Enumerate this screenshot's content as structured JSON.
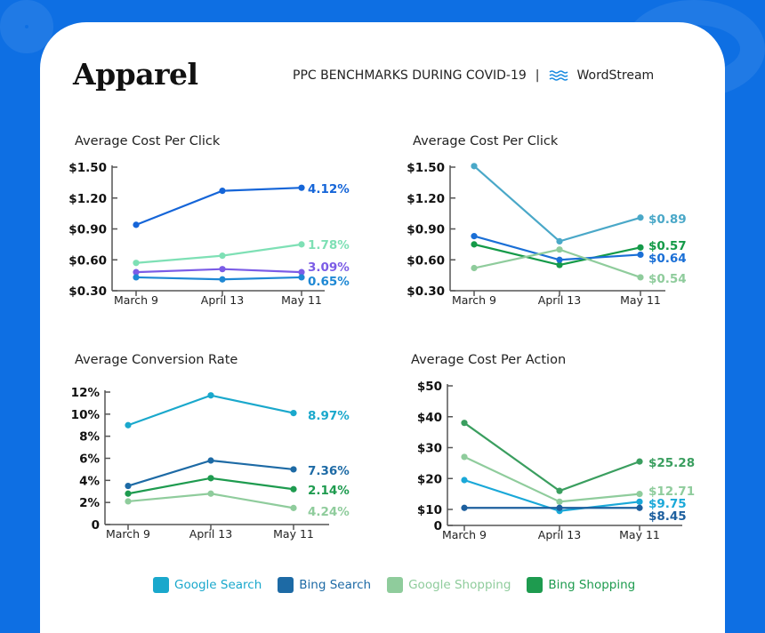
{
  "header": {
    "title": "Apparel",
    "subtitle": "PPC BENCHMARKS DURING COVID-19",
    "separator": "|",
    "brand": "WordStream",
    "brand_icon": "wave-icon"
  },
  "legend": [
    {
      "label": "Google Search",
      "color": "#1aa8cc"
    },
    {
      "label": "Bing Search",
      "color": "#1d6aa5"
    },
    {
      "label": "Google Shopping",
      "color": "#8fcc9c"
    },
    {
      "label": "Bing Shopping",
      "color": "#1e9b4f"
    }
  ],
  "chart_data": [
    {
      "type": "line",
      "title": "Average Cost Per Click",
      "categories": [
        "March 9",
        "April 13",
        "May 11"
      ],
      "yticks": [
        "$0.30",
        "$0.60",
        "$0.90",
        "$1.20",
        "$1.50"
      ],
      "ytick_values": [
        0.3,
        0.6,
        0.9,
        1.2,
        1.5
      ],
      "ylim": [
        0.3,
        1.5
      ],
      "series": [
        {
          "values": [
            0.94,
            1.27,
            1.3
          ],
          "color": "#1565d8",
          "end_label": "4.12%"
        },
        {
          "values": [
            0.57,
            0.64,
            0.75
          ],
          "color": "#7ee0b5",
          "end_label": "1.78%"
        },
        {
          "values": [
            0.48,
            0.51,
            0.48
          ],
          "color": "#7b5ce6",
          "end_label": "3.09%"
        },
        {
          "values": [
            0.43,
            0.41,
            0.43
          ],
          "color": "#1e88d4",
          "end_label": "0.65%"
        }
      ]
    },
    {
      "type": "line",
      "title": "Average Cost Per Click",
      "categories": [
        "March 9",
        "April 13",
        "May 11"
      ],
      "yticks": [
        "$0.30",
        "$0.60",
        "$0.90",
        "$1.20",
        "$1.50"
      ],
      "ytick_values": [
        0.3,
        0.6,
        0.9,
        1.2,
        1.5
      ],
      "ylim": [
        0.3,
        1.5
      ],
      "series": [
        {
          "values": [
            1.51,
            0.78,
            1.01
          ],
          "color": "#4aa8c8",
          "end_label": "$0.89"
        },
        {
          "values": [
            0.75,
            0.55,
            0.72
          ],
          "color": "#149a48",
          "end_label": "$0.57"
        },
        {
          "values": [
            0.83,
            0.6,
            0.65
          ],
          "color": "#1a6fd6",
          "end_label": "$0.64"
        },
        {
          "values": [
            0.52,
            0.7,
            0.43
          ],
          "color": "#8fcc9c",
          "end_label": "$0.54"
        }
      ]
    },
    {
      "type": "line",
      "title": "Average Conversion Rate",
      "categories": [
        "March 9",
        "April 13",
        "May 11"
      ],
      "yticks": [
        "0",
        "2%",
        "4%",
        "6%",
        "8%",
        "10%",
        "12%"
      ],
      "ytick_values": [
        0,
        2,
        4,
        6,
        8,
        10,
        12
      ],
      "ylim": [
        0,
        12
      ],
      "series": [
        {
          "name": "Google Search",
          "values": [
            9.0,
            11.7,
            10.1
          ],
          "color": "#1aa8cc",
          "end_label": "8.97%"
        },
        {
          "name": "Bing Search",
          "values": [
            3.5,
            5.8,
            5.0
          ],
          "color": "#1d6aa5",
          "end_label": "7.36%"
        },
        {
          "name": "Bing Shopping",
          "values": [
            2.8,
            4.2,
            3.2
          ],
          "color": "#1e9b4f",
          "end_label": "2.14%"
        },
        {
          "name": "Google Shopping",
          "values": [
            2.1,
            2.8,
            1.5
          ],
          "color": "#8fcc9c",
          "end_label": "4.24%"
        }
      ]
    },
    {
      "type": "line",
      "title": "Average Cost Per Action",
      "categories": [
        "March 9",
        "April 13",
        "May 11"
      ],
      "yticks": [
        "0",
        "$10",
        "$20",
        "$30",
        "$40",
        "$50"
      ],
      "ytick_values": [
        0,
        10,
        20,
        30,
        40,
        50
      ],
      "ylim": [
        0,
        50
      ],
      "series": [
        {
          "name": "Bing Shopping",
          "values": [
            38,
            16,
            25.5
          ],
          "color": "#3a9e5f",
          "end_label": "$25.28"
        },
        {
          "name": "Google Shopping",
          "values": [
            27,
            12.5,
            15
          ],
          "color": "#8fcc9c",
          "end_label": "$12.71"
        },
        {
          "name": "Google Search",
          "values": [
            19.5,
            9.5,
            12.5
          ],
          "color": "#1aa8d8",
          "end_label": "$9.75"
        },
        {
          "name": "Bing Search",
          "values": [
            10.5,
            10.5,
            10.5
          ],
          "color": "#1d5f9e",
          "end_label": "$8.45"
        }
      ]
    }
  ]
}
